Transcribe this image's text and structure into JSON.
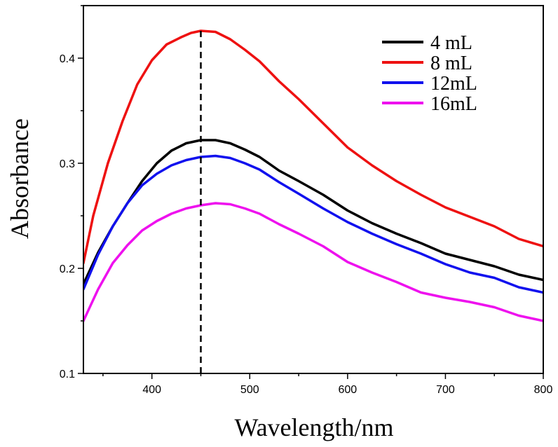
{
  "chart_data": {
    "type": "line",
    "xlabel": "Wavelength/nm",
    "ylabel": "Absorbance",
    "xlim": [
      330,
      800
    ],
    "ylim": [
      0.1,
      0.45
    ],
    "xticks": [
      400,
      500,
      600,
      700,
      800
    ],
    "yticks": [
      0.1,
      0.2,
      0.3,
      0.4
    ],
    "xtick_labels": [
      "400",
      "500",
      "600",
      "700",
      "800"
    ],
    "ytick_labels": [
      "0.1",
      "0.2",
      "0.3",
      "0.4"
    ],
    "legend_position": "top-right",
    "reference_line": {
      "x": 450,
      "style": "dashed"
    },
    "series": [
      {
        "name": "4 mL",
        "color": "#000000",
        "points": [
          [
            330,
            0.185
          ],
          [
            345,
            0.215
          ],
          [
            360,
            0.24
          ],
          [
            375,
            0.262
          ],
          [
            390,
            0.283
          ],
          [
            405,
            0.3
          ],
          [
            420,
            0.312
          ],
          [
            435,
            0.319
          ],
          [
            450,
            0.322
          ],
          [
            465,
            0.322
          ],
          [
            480,
            0.319
          ],
          [
            495,
            0.313
          ],
          [
            510,
            0.306
          ],
          [
            530,
            0.293
          ],
          [
            550,
            0.283
          ],
          [
            575,
            0.27
          ],
          [
            600,
            0.255
          ],
          [
            625,
            0.243
          ],
          [
            650,
            0.233
          ],
          [
            675,
            0.224
          ],
          [
            700,
            0.214
          ],
          [
            725,
            0.208
          ],
          [
            750,
            0.202
          ],
          [
            775,
            0.194
          ],
          [
            800,
            0.189
          ]
        ]
      },
      {
        "name": "8 mL",
        "color": "#ee1111",
        "points": [
          [
            330,
            0.205
          ],
          [
            340,
            0.25
          ],
          [
            355,
            0.3
          ],
          [
            370,
            0.34
          ],
          [
            385,
            0.375
          ],
          [
            400,
            0.398
          ],
          [
            415,
            0.413
          ],
          [
            430,
            0.42
          ],
          [
            440,
            0.424
          ],
          [
            450,
            0.426
          ],
          [
            465,
            0.425
          ],
          [
            480,
            0.418
          ],
          [
            495,
            0.408
          ],
          [
            510,
            0.397
          ],
          [
            530,
            0.378
          ],
          [
            550,
            0.361
          ],
          [
            575,
            0.338
          ],
          [
            600,
            0.315
          ],
          [
            625,
            0.298
          ],
          [
            650,
            0.283
          ],
          [
            675,
            0.27
          ],
          [
            700,
            0.258
          ],
          [
            725,
            0.249
          ],
          [
            750,
            0.24
          ],
          [
            775,
            0.228
          ],
          [
            800,
            0.221
          ]
        ]
      },
      {
        "name": "12mL",
        "color": "#1111ee",
        "points": [
          [
            330,
            0.18
          ],
          [
            345,
            0.213
          ],
          [
            360,
            0.24
          ],
          [
            375,
            0.262
          ],
          [
            390,
            0.279
          ],
          [
            405,
            0.29
          ],
          [
            420,
            0.298
          ],
          [
            435,
            0.303
          ],
          [
            450,
            0.306
          ],
          [
            465,
            0.307
          ],
          [
            480,
            0.305
          ],
          [
            495,
            0.3
          ],
          [
            510,
            0.294
          ],
          [
            530,
            0.282
          ],
          [
            550,
            0.271
          ],
          [
            575,
            0.257
          ],
          [
            600,
            0.244
          ],
          [
            625,
            0.233
          ],
          [
            650,
            0.223
          ],
          [
            675,
            0.214
          ],
          [
            700,
            0.204
          ],
          [
            725,
            0.196
          ],
          [
            750,
            0.191
          ],
          [
            775,
            0.182
          ],
          [
            800,
            0.177
          ]
        ]
      },
      {
        "name": "16mL",
        "color": "#ee11ee",
        "points": [
          [
            330,
            0.15
          ],
          [
            345,
            0.18
          ],
          [
            360,
            0.205
          ],
          [
            375,
            0.222
          ],
          [
            390,
            0.236
          ],
          [
            405,
            0.245
          ],
          [
            420,
            0.252
          ],
          [
            435,
            0.257
          ],
          [
            450,
            0.26
          ],
          [
            465,
            0.262
          ],
          [
            480,
            0.261
          ],
          [
            495,
            0.257
          ],
          [
            510,
            0.252
          ],
          [
            530,
            0.242
          ],
          [
            550,
            0.233
          ],
          [
            575,
            0.221
          ],
          [
            600,
            0.206
          ],
          [
            625,
            0.196
          ],
          [
            650,
            0.187
          ],
          [
            675,
            0.177
          ],
          [
            700,
            0.172
          ],
          [
            725,
            0.168
          ],
          [
            750,
            0.163
          ],
          [
            775,
            0.155
          ],
          [
            800,
            0.15
          ]
        ]
      }
    ]
  }
}
